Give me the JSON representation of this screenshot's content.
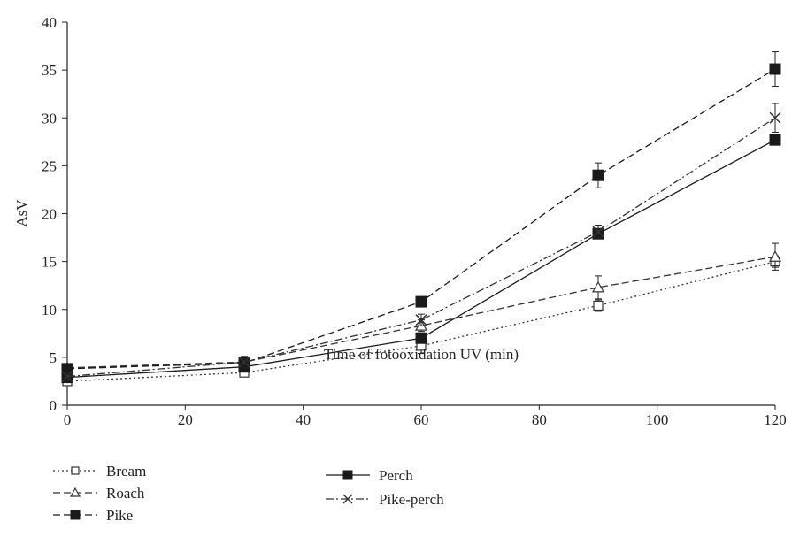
{
  "chart_data": {
    "type": "line",
    "title": "",
    "xlabel": "Time of fotooxidation UV (min)",
    "ylabel": "AsV",
    "xlim": [
      0,
      120
    ],
    "ylim": [
      0,
      40
    ],
    "xticks": [
      0,
      20,
      40,
      60,
      80,
      100,
      120
    ],
    "yticks": [
      0,
      5,
      10,
      15,
      20,
      25,
      30,
      35,
      40
    ],
    "grid": false,
    "legend_position": "bottom",
    "x": [
      0,
      30,
      60,
      90,
      120
    ],
    "series": [
      {
        "name": "Bream",
        "values": [
          2.5,
          3.4,
          6.2,
          10.4,
          15.0
        ],
        "errors": [
          0.3,
          0.3,
          0.8,
          0.6,
          0.6
        ],
        "line_style": "dotted",
        "marker": "open-square",
        "color": "#333333"
      },
      {
        "name": "Roach",
        "values": [
          3.9,
          4.5,
          8.3,
          12.3,
          15.5
        ],
        "errors": [
          0.3,
          0.4,
          0.6,
          1.2,
          1.4
        ],
        "line_style": "dashed",
        "marker": "open-triangle",
        "color": "#333333"
      },
      {
        "name": "Pike",
        "values": [
          3.8,
          4.4,
          10.8,
          24.0,
          35.1
        ],
        "errors": [
          0.3,
          0.4,
          0.4,
          1.3,
          1.8
        ],
        "line_style": "dashed",
        "marker": "filled-square",
        "color": "#1a1a1a"
      },
      {
        "name": "Perch",
        "values": [
          2.9,
          4.0,
          7.0,
          17.9,
          27.7
        ],
        "errors": [
          0.3,
          0.3,
          0.5,
          0.5,
          0.4
        ],
        "line_style": "solid",
        "marker": "filled-square",
        "color": "#1a1a1a"
      },
      {
        "name": "Pike-perch",
        "values": [
          3.0,
          4.5,
          8.9,
          18.1,
          30.0
        ],
        "errors": [
          0.3,
          0.6,
          0.6,
          0.7,
          1.5
        ],
        "line_style": "dash-dot",
        "marker": "x",
        "color": "#333333"
      }
    ]
  }
}
